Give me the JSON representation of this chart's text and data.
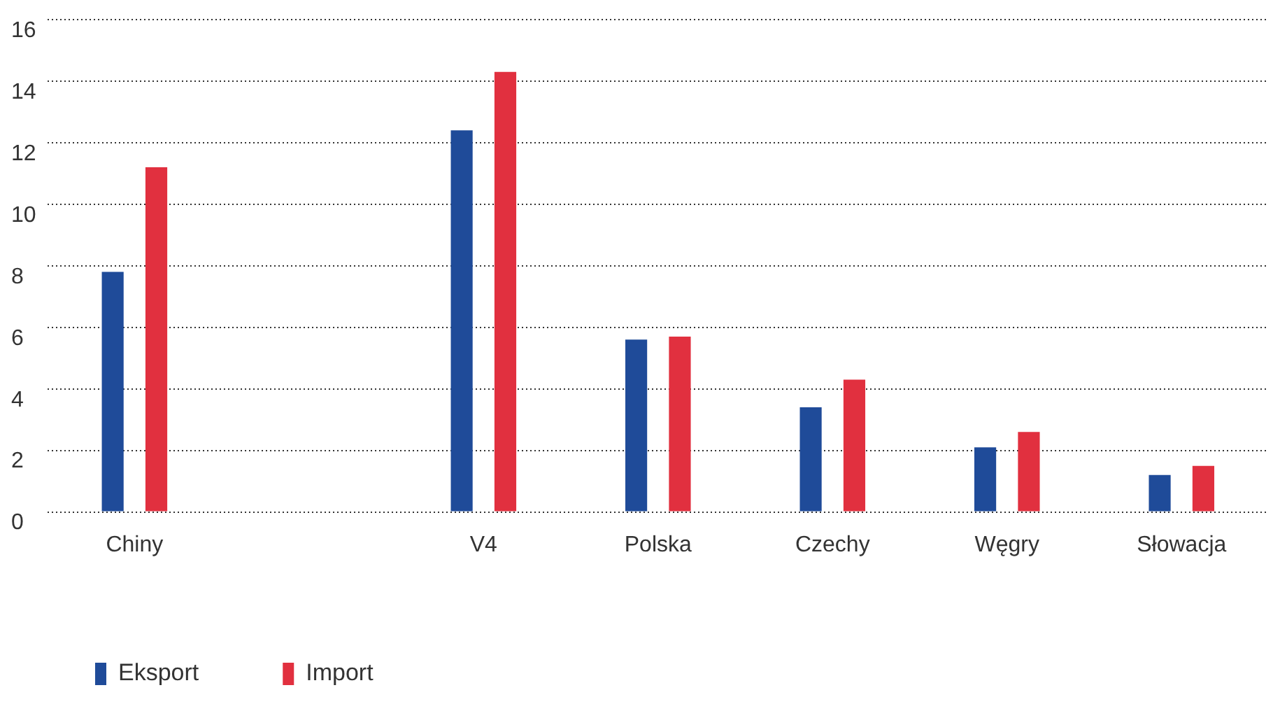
{
  "chart_data": {
    "type": "bar",
    "categories": [
      "Chiny",
      null,
      "V4",
      "Polska",
      "Czechy",
      "Węgry",
      "Słowacja"
    ],
    "series": [
      {
        "name": "Eksport",
        "color": "#1f4b99",
        "values": [
          7.8,
          null,
          12.4,
          5.6,
          3.4,
          2.1,
          1.2
        ]
      },
      {
        "name": "Import",
        "color": "#e1303f",
        "values": [
          11.2,
          null,
          14.3,
          5.7,
          4.3,
          2.6,
          1.5
        ]
      }
    ],
    "ylim": [
      0,
      16
    ],
    "yticks": [
      0,
      2,
      4,
      6,
      8,
      10,
      12,
      14,
      16
    ],
    "grid": "y",
    "legend": "bottom left"
  }
}
